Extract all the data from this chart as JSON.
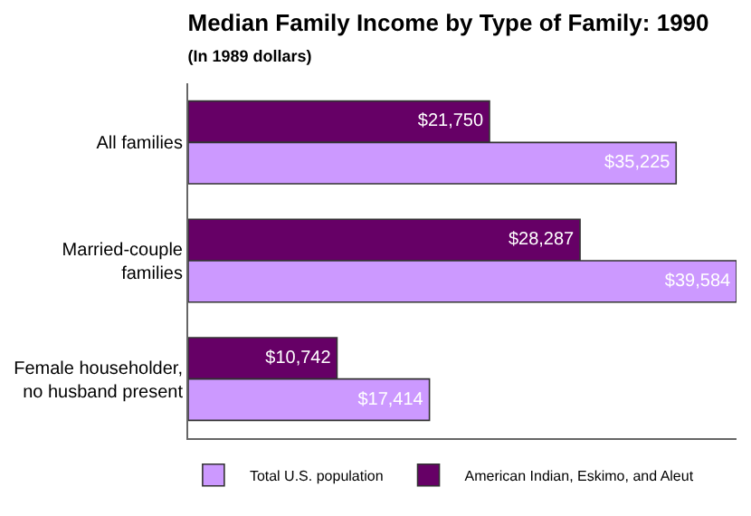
{
  "chart_data": {
    "type": "bar",
    "orientation": "horizontal",
    "title": "Median Family Income by Type of Family: 1990",
    "subtitle": "(In 1989 dollars)",
    "categories": [
      "All families",
      "Married-couple families",
      "Female householder, no husband present"
    ],
    "series": [
      {
        "name": "American Indian, Eskimo, and Aleut",
        "color": "#660066",
        "values": [
          21750,
          28287,
          10742
        ],
        "value_labels": [
          "$21,750",
          "$28,287",
          "$10,742"
        ]
      },
      {
        "name": "Total U.S. population",
        "color": "#cc99ff",
        "values": [
          35225,
          39584,
          17414
        ],
        "value_labels": [
          "$35,225",
          "$39,584",
          "$17,414"
        ]
      }
    ],
    "legend": "bottom"
  }
}
